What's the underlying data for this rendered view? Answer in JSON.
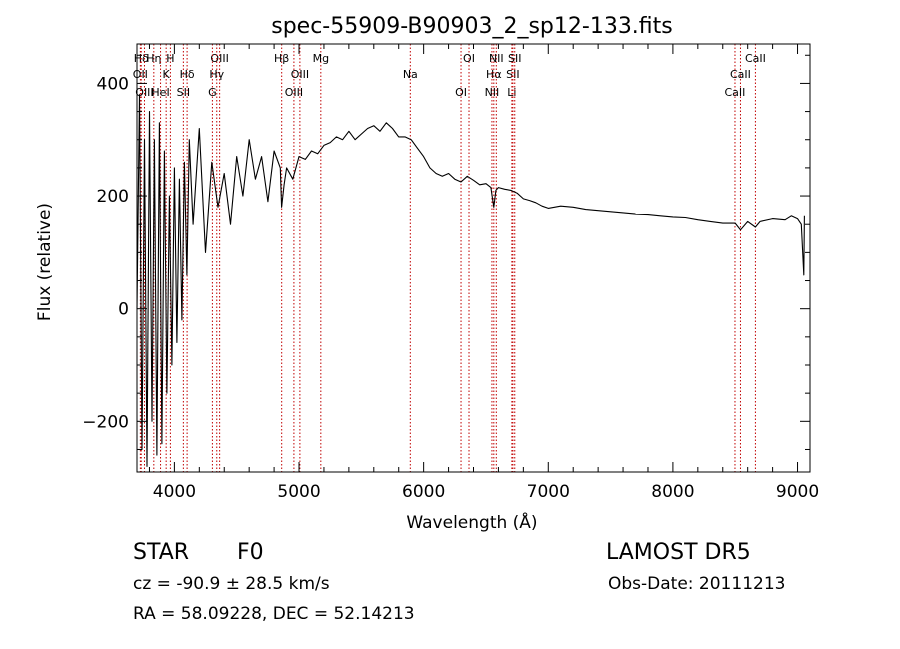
{
  "chart_data": {
    "type": "line",
    "title": "spec-55909-B90903_2_sp12-133.fits",
    "xlabel": "Wavelength (Å)",
    "ylabel": "Flux (relative)",
    "xlim": [
      3700,
      9100
    ],
    "ylim": [
      -290,
      470
    ],
    "xticks": [
      4000,
      5000,
      6000,
      7000,
      8000,
      9000
    ],
    "yticks": [
      -200,
      0,
      200,
      400
    ],
    "grid": false,
    "legend": "none",
    "series": [
      {
        "x": [
          3700,
          3720,
          3740,
          3760,
          3780,
          3800,
          3820,
          3840,
          3860,
          3880,
          3900,
          3920,
          3940,
          3960,
          3980,
          4000,
          4020,
          4040,
          4060,
          4080,
          4100,
          4120,
          4150,
          4200,
          4250,
          4300,
          4350,
          4400,
          4450,
          4500,
          4550,
          4600,
          4650,
          4700,
          4750,
          4800,
          4850,
          4860,
          4880,
          4900,
          4950,
          5000,
          5050,
          5100,
          5150,
          5200,
          5250,
          5300,
          5350,
          5400,
          5450,
          5500,
          5550,
          5600,
          5650,
          5700,
          5750,
          5800,
          5850,
          5900,
          5950,
          6000,
          6050,
          6100,
          6150,
          6200,
          6250,
          6300,
          6350,
          6400,
          6450,
          6500,
          6540,
          6563,
          6580,
          6600,
          6650,
          6700,
          6750,
          6800,
          6850,
          6900,
          6950,
          7000,
          7100,
          7200,
          7300,
          7400,
          7500,
          7600,
          7700,
          7800,
          7900,
          8000,
          8100,
          8200,
          8300,
          8400,
          8500,
          8542,
          8600,
          8662,
          8700,
          8800,
          8900,
          8950,
          9000,
          9030,
          9050,
          9055
        ],
        "y": [
          0,
          380,
          -250,
          300,
          -280,
          350,
          -200,
          300,
          -260,
          330,
          -240,
          280,
          -150,
          200,
          -100,
          250,
          -60,
          230,
          -20,
          260,
          60,
          300,
          150,
          320,
          100,
          260,
          180,
          240,
          150,
          270,
          200,
          300,
          230,
          270,
          190,
          280,
          250,
          180,
          220,
          250,
          230,
          270,
          265,
          280,
          275,
          290,
          295,
          305,
          300,
          315,
          300,
          310,
          320,
          325,
          315,
          330,
          320,
          305,
          305,
          300,
          285,
          270,
          250,
          240,
          235,
          240,
          230,
          225,
          235,
          228,
          220,
          222,
          215,
          180,
          210,
          215,
          212,
          210,
          205,
          195,
          192,
          188,
          182,
          178,
          182,
          180,
          176,
          174,
          172,
          170,
          168,
          167,
          165,
          163,
          162,
          158,
          155,
          152,
          152,
          140,
          155,
          145,
          155,
          160,
          158,
          165,
          160,
          150,
          60,
          165
        ],
        "line_color": "#000000"
      }
    ],
    "spectral_lines": [
      {
        "label": "Hδ",
        "x": 3734
      },
      {
        "label": "OII",
        "x": 3727
      },
      {
        "label": "OIII",
        "x": 3760
      },
      {
        "label": "Hη",
        "x": 3835
      },
      {
        "label": "K",
        "x": 3934
      },
      {
        "label": "HeI",
        "x": 3889
      },
      {
        "label": "H",
        "x": 3968
      },
      {
        "label": "Hδ",
        "x": 4102
      },
      {
        "label": "SII",
        "x": 4072
      },
      {
        "label": "OIII",
        "x": 4363
      },
      {
        "label": "Hγ",
        "x": 4340
      },
      {
        "label": "G",
        "x": 4305
      },
      {
        "label": "Hβ",
        "x": 4861
      },
      {
        "label": "OIII",
        "x": 5007
      },
      {
        "label": "OIII",
        "x": 4959
      },
      {
        "label": "Mg",
        "x": 5175
      },
      {
        "label": "Na",
        "x": 5893
      },
      {
        "label": "OI",
        "x": 6300
      },
      {
        "label": "OI",
        "x": 6364
      },
      {
        "label": "Hα",
        "x": 6563
      },
      {
        "label": "NII",
        "x": 6548
      },
      {
        "label": "NII",
        "x": 6583
      },
      {
        "label": "SII",
        "x": 6716
      },
      {
        "label": "Li",
        "x": 6708
      },
      {
        "label": "SII",
        "x": 6731
      },
      {
        "label": "CaII",
        "x": 8542
      },
      {
        "label": "CaII",
        "x": 8498
      },
      {
        "label": "CaII",
        "x": 8662
      }
    ]
  },
  "info": {
    "class": "STAR",
    "subclass": "F0",
    "survey": "LAMOST DR5",
    "cz": "cz = -90.9 ± 28.5 km/s",
    "obs_date": "Obs-Date: 20111213",
    "coords": "RA =  58.09228, DEC =  52.14213"
  },
  "colors": {
    "line": "#000000",
    "spectral_line": "#c00000",
    "axes": "#000000"
  }
}
